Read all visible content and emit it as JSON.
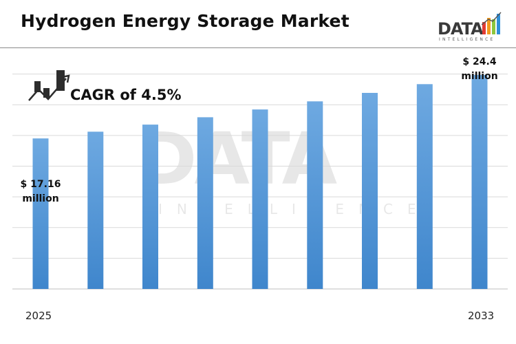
{
  "header": {
    "title": "Hydrogen Energy Storage Market",
    "logo_word": "DATA",
    "logo_sub": "INTELLIGENCE"
  },
  "watermark": {
    "word": "DATA",
    "sub": "INTELLIGENCE"
  },
  "cagr": {
    "text": "CAGR of 4.5%",
    "icon": "growth-chart-icon"
  },
  "colors": {
    "bar_top": "#6ea9e1",
    "bar_bottom": "#3f86cc",
    "grid": "#d9d9d9",
    "logo_bars": [
      "#e23b34",
      "#f39a1e",
      "#8cc63f",
      "#2f8fd8"
    ]
  },
  "chart_data": {
    "type": "bar",
    "title": "Hydrogen Energy Storage Market",
    "xlabel": "",
    "ylabel": "",
    "categories": [
      "2025",
      "",
      "",
      "",
      "",
      "",
      "",
      "",
      "2033"
    ],
    "values": [
      17.16,
      17.93,
      18.74,
      19.58,
      20.46,
      21.39,
      22.35,
      23.35,
      24.4
    ],
    "ylim": [
      0,
      27.5
    ],
    "unit": "million",
    "grid": true,
    "annotations": [
      {
        "category": "2025",
        "text": "$ 17.16 million"
      },
      {
        "category": "2033",
        "text": "$ 24.4 million"
      }
    ],
    "labels": {
      "first_line1": "$ 17.16",
      "first_line2": "million",
      "last_line1": "$ 24.4",
      "last_line2": "million"
    },
    "x_ticks": {
      "first": "2025",
      "last": "2033"
    }
  }
}
